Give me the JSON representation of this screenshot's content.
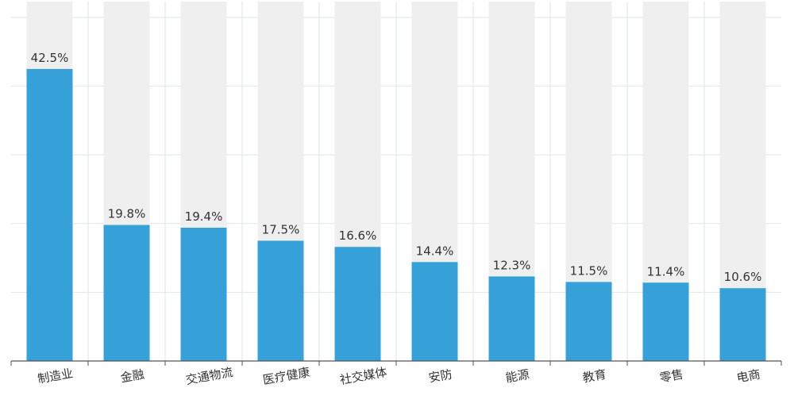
{
  "chart_data": {
    "type": "bar",
    "title": "",
    "xlabel": "",
    "ylabel": "",
    "ylim": [
      0,
      50
    ],
    "grid": true,
    "legend": "none",
    "categories": [
      "制造业",
      "金融",
      "交通物流",
      "医疗健康",
      "社交媒体",
      "安防",
      "能源",
      "教育",
      "零售",
      "电商"
    ],
    "values": [
      42.5,
      19.8,
      19.4,
      17.5,
      16.6,
      14.4,
      12.3,
      11.5,
      11.4,
      10.6
    ],
    "value_labels": [
      "42.5%",
      "19.8%",
      "19.4%",
      "17.5%",
      "16.6%",
      "14.4%",
      "12.3%",
      "11.5%",
      "11.4%",
      "10.6%"
    ],
    "colors": {
      "bar": "#36a0d9",
      "track": "#efefef",
      "grid": "#dfe6ea",
      "axis": "#555555",
      "text": "#333333"
    }
  }
}
